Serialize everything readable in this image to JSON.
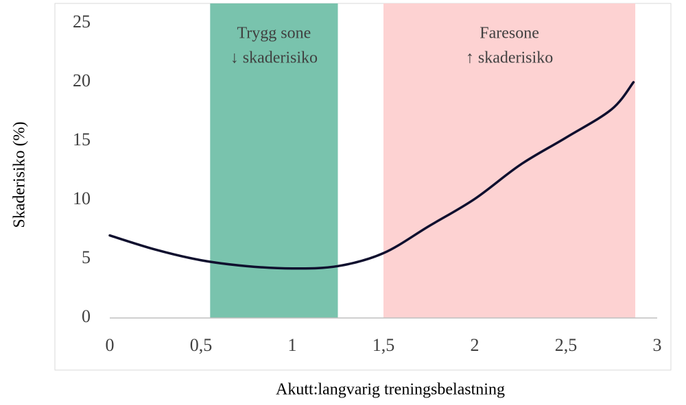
{
  "chart_data": {
    "type": "line",
    "x_label": "Akutt:langvarig treningsbelastning",
    "y_label": "Skaderisiko (%)",
    "bands": [
      {
        "label": [
          "Trygg sone",
          "↓ skaderisiko"
        ],
        "xrange": [
          0.55,
          1.25
        ],
        "color": "#79c3ad"
      },
      {
        "label": [
          "Faresone",
          "↑ skaderisiko"
        ],
        "xrange": [
          1.5,
          2.88
        ],
        "color": "#fdd2d2"
      }
    ],
    "x": [
      0,
      0.25,
      0.5,
      0.75,
      1,
      1.25,
      1.5,
      1.75,
      2,
      2.25,
      2.5,
      2.75,
      2.87
    ],
    "series": [
      {
        "name": "Skaderisiko",
        "color": "#0f0f2e",
        "values": [
          7,
          5.8,
          4.9,
          4.4,
          4.2,
          4.4,
          5.5,
          7.8,
          10.1,
          13,
          15.3,
          17.7,
          20
        ]
      }
    ],
    "xlim": [
      0,
      3
    ],
    "xticks": [
      0,
      {
        "value": 0.5,
        "label": "0,5"
      },
      1,
      {
        "value": 1.5,
        "label": "1,5"
      },
      2,
      {
        "value": 2.5,
        "label": "2,5"
      },
      3
    ],
    "ylim": [
      0,
      25
    ],
    "yticks": [
      0,
      5,
      10,
      15,
      20,
      25
    ],
    "grid": false
  }
}
